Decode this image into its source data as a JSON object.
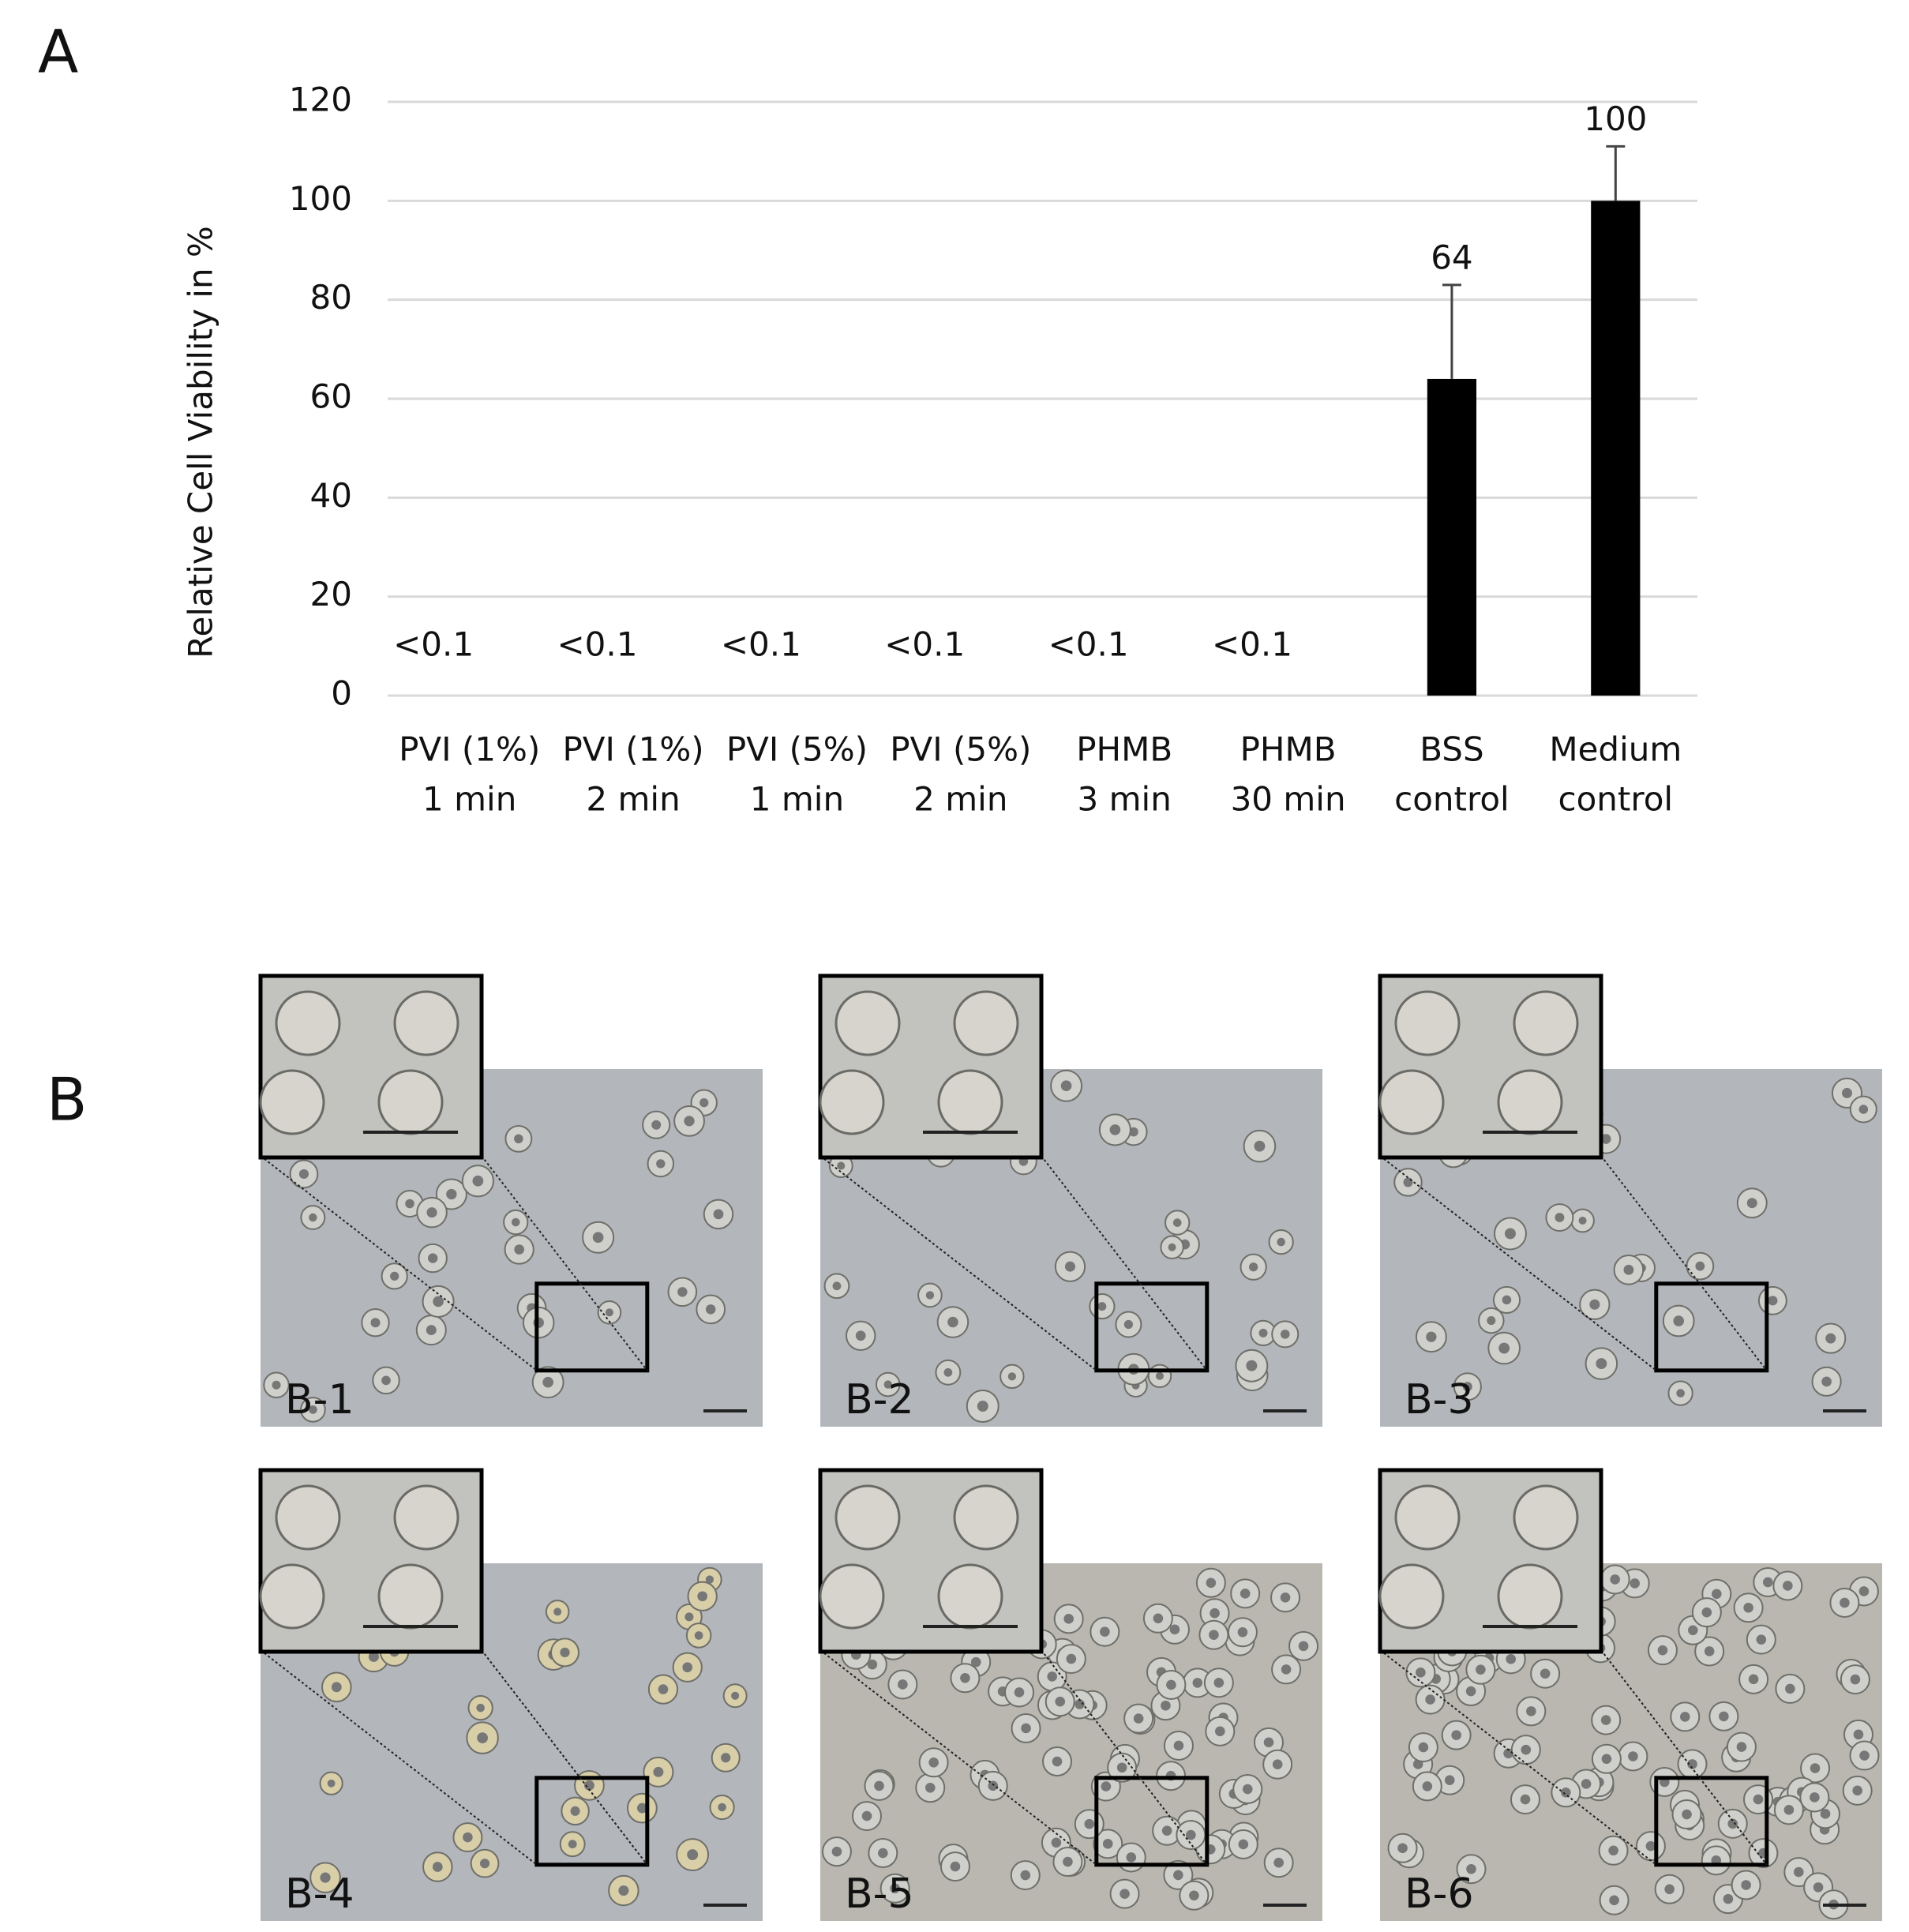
{
  "panel_a_label": "A",
  "chart_data": {
    "type": "bar",
    "y_label": "Relative Cell Viability in %",
    "categories": [
      [
        "PVI (1%)",
        "1 min"
      ],
      [
        "PVI (1%)",
        "2 min"
      ],
      [
        "PVI (5%)",
        "1 min"
      ],
      [
        "PVI (5%)",
        "2 min"
      ],
      [
        "PHMB",
        "3 min"
      ],
      [
        "PHMB",
        "30 min"
      ],
      [
        "BSS",
        "control"
      ],
      [
        "Medium",
        "control"
      ]
    ],
    "values": [
      0,
      0,
      0,
      0,
      0,
      0,
      64,
      100
    ],
    "value_labels": [
      "<0.1",
      "<0.1",
      "<0.1",
      "<0.1",
      "<0.1",
      "<0.1",
      "64",
      "100"
    ],
    "errors": [
      null,
      null,
      null,
      null,
      null,
      null,
      19,
      11
    ],
    "color": "#000000",
    "ylim": [
      0,
      120
    ],
    "yticks": [
      0,
      20,
      40,
      60,
      80,
      100,
      120
    ],
    "grid": true
  },
  "panel_b": {
    "label": "B",
    "images": [
      {
        "label": "B-1"
      },
      {
        "label": "B-2"
      },
      {
        "label": "B-3"
      },
      {
        "label": "B-4"
      },
      {
        "label": "B-5"
      },
      {
        "label": "B-6"
      }
    ]
  }
}
